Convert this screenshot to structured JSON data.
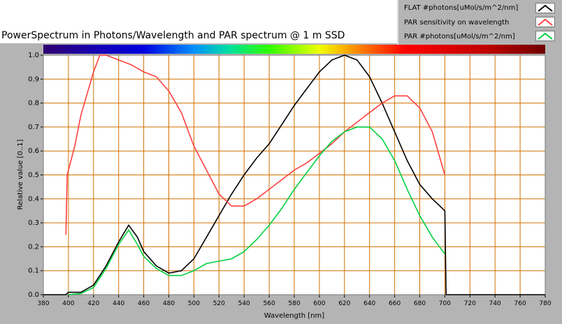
{
  "chart_data": {
    "type": "line",
    "title": "PowerSpectrum in Photons/Wavelength and PAR spectrum @ 1 m SSD",
    "xlabel": "Wavelength [nm]",
    "ylabel": "Relative value [0..1]",
    "xlim": [
      380,
      780
    ],
    "ylim": [
      0,
      1.0
    ],
    "xticks": [
      380,
      400,
      420,
      440,
      460,
      480,
      500,
      520,
      540,
      560,
      580,
      600,
      620,
      640,
      660,
      680,
      700,
      720,
      740,
      760,
      780
    ],
    "yticks": [
      "0.0",
      "0.1",
      "0.2",
      "0.3",
      "0.4",
      "0.5",
      "0.6",
      "0.7",
      "0.8",
      "0.9",
      "1.0"
    ],
    "grid": true,
    "grid_color": "#d07000",
    "spectrum_colorbar": true,
    "legend_position": "top-right",
    "series": [
      {
        "name": "FLAT #photons[uMol/s/m^2/nm]",
        "color": "#000000",
        "x": [
          380,
          398,
          400,
          410,
          420,
          430,
          440,
          448,
          455,
          460,
          470,
          480,
          490,
          500,
          510,
          520,
          530,
          540,
          550,
          560,
          570,
          580,
          590,
          600,
          610,
          620,
          630,
          640,
          650,
          660,
          670,
          680,
          690,
          700,
          701,
          780
        ],
        "y": [
          0,
          0,
          0.01,
          0.01,
          0.04,
          0.12,
          0.22,
          0.29,
          0.24,
          0.18,
          0.12,
          0.09,
          0.1,
          0.15,
          0.24,
          0.33,
          0.42,
          0.5,
          0.57,
          0.63,
          0.71,
          0.79,
          0.86,
          0.93,
          0.98,
          1.0,
          0.98,
          0.91,
          0.8,
          0.68,
          0.56,
          0.46,
          0.4,
          0.35,
          0,
          0
        ]
      },
      {
        "name": "PAR sensitivity on wavelength",
        "color": "#ff4040",
        "x": [
          398,
          399,
          405,
          410,
          420,
          425,
          430,
          440,
          450,
          460,
          470,
          480,
          490,
          500,
          510,
          520,
          530,
          540,
          550,
          560,
          570,
          580,
          590,
          600,
          610,
          620,
          630,
          640,
          650,
          660,
          670,
          680,
          690,
          700
        ],
        "y": [
          0.25,
          0.5,
          0.62,
          0.75,
          0.93,
          1.0,
          1.0,
          0.98,
          0.96,
          0.93,
          0.91,
          0.85,
          0.76,
          0.62,
          0.52,
          0.42,
          0.37,
          0.37,
          0.4,
          0.44,
          0.48,
          0.52,
          0.55,
          0.59,
          0.63,
          0.68,
          0.72,
          0.76,
          0.8,
          0.83,
          0.83,
          0.78,
          0.68,
          0.5
        ]
      },
      {
        "name": "PAR #photons[uMol/s/m^2/nm]",
        "color": "#00d040",
        "x": [
          400,
          410,
          420,
          430,
          440,
          448,
          455,
          460,
          470,
          480,
          490,
          500,
          510,
          520,
          530,
          540,
          550,
          560,
          570,
          580,
          590,
          600,
          610,
          620,
          630,
          640,
          650,
          660,
          670,
          680,
          690,
          700
        ],
        "y": [
          0,
          0.005,
          0.03,
          0.11,
          0.21,
          0.27,
          0.21,
          0.16,
          0.11,
          0.08,
          0.08,
          0.1,
          0.13,
          0.14,
          0.15,
          0.18,
          0.23,
          0.29,
          0.36,
          0.44,
          0.51,
          0.58,
          0.64,
          0.68,
          0.7,
          0.7,
          0.65,
          0.56,
          0.44,
          0.33,
          0.24,
          0.17
        ]
      }
    ]
  }
}
